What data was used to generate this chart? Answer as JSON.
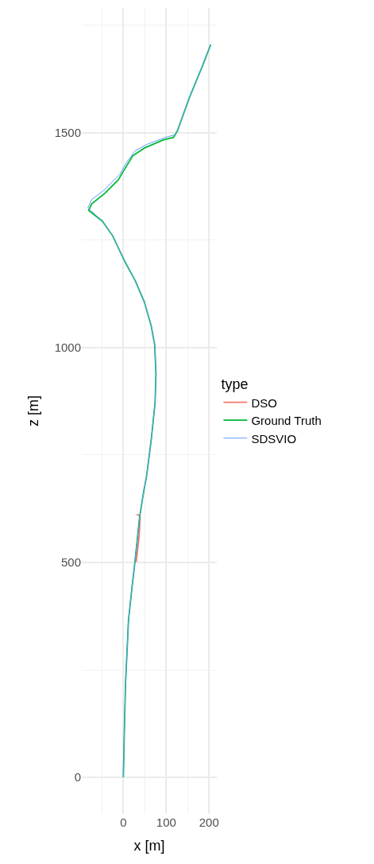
{
  "chart_data": {
    "type": "line",
    "xlabel": "x [m]",
    "ylabel": "z [m]",
    "legend_title": "type",
    "legend": "right",
    "grid": true,
    "xlim": [
      -97,
      218
    ],
    "ylim": [
      -85,
      1790
    ],
    "xticks": [
      0,
      100,
      200
    ],
    "yticks": [
      0,
      500,
      1000,
      1500
    ],
    "series": [
      {
        "name": "DSO",
        "color": "#f8766d",
        "x": [
          30,
          37,
          39,
          37,
          31
        ],
        "values": [
          501,
          563,
          606,
          609,
          612
        ]
      },
      {
        "name": "Ground Truth",
        "color": "#00ba38",
        "x": [
          0,
          1.9,
          5,
          12,
          20,
          27,
          38,
          48,
          54,
          65,
          74,
          76,
          73,
          65,
          49,
          28,
          4,
          -25,
          -49,
          -81,
          -74,
          -43,
          -12,
          3,
          22,
          49,
          93,
          117,
          126,
          154,
          185,
          204
        ],
        "values": [
          0,
          88,
          217,
          366,
          440,
          501,
          606,
          668,
          699,
          785,
          871,
          939,
          1007,
          1050,
          1106,
          1155,
          1199,
          1260,
          1294,
          1319,
          1334,
          1359,
          1390,
          1415,
          1446,
          1464,
          1483,
          1489,
          1504,
          1581,
          1656,
          1705
        ]
      },
      {
        "name": "SDSVIO",
        "color": "#619cff",
        "x": [
          0,
          1.9,
          5,
          12,
          20,
          27,
          38,
          48,
          54,
          65,
          74,
          76,
          73,
          65,
          49,
          28,
          4,
          -25,
          -49,
          -83,
          -74,
          -43,
          -9,
          9,
          28,
          56,
          99,
          120,
          126,
          154,
          185,
          204
        ],
        "values": [
          0,
          88,
          217,
          366,
          440,
          501,
          606,
          668,
          699,
          785,
          871,
          939,
          1007,
          1050,
          1106,
          1155,
          1199,
          1260,
          1294,
          1325,
          1344,
          1368,
          1402,
          1433,
          1458,
          1473,
          1489,
          1495,
          1504,
          1581,
          1656,
          1705
        ]
      }
    ]
  }
}
